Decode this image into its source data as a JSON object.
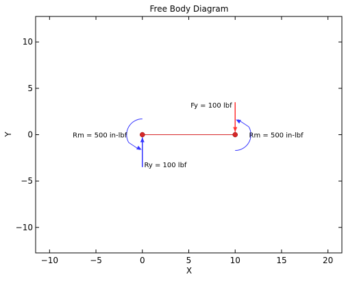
{
  "chart_data": {
    "type": "diagram",
    "title": "Free Body Diagram",
    "xlabel": "X",
    "ylabel": "Y",
    "xlim": [
      -11.5,
      21.5
    ],
    "ylim": [
      -12.75,
      12.75
    ],
    "xticks": [
      -10,
      -5,
      0,
      5,
      10,
      15,
      20
    ],
    "yticks": [
      -10,
      -5,
      0,
      5,
      10
    ],
    "xtick_labels": [
      "−10",
      "−5",
      "0",
      "5",
      "10",
      "15",
      "20"
    ],
    "ytick_labels": [
      "−10",
      "−5",
      "0",
      "5",
      "10"
    ],
    "beam": {
      "x1": 0,
      "y1": 0,
      "x2": 10,
      "y2": 0,
      "color": "#d62728"
    },
    "nodes": [
      {
        "x": 0,
        "y": 0
      },
      {
        "x": 10,
        "y": 0
      }
    ],
    "forces": [
      {
        "label": "Fy = 100 lbf",
        "x0": 10,
        "y0": 3.5,
        "x1": 10,
        "y1": 0,
        "color": "#ff3333",
        "label_x": 5.2,
        "label_y": 3.2
      },
      {
        "label": "Ry = 100 lbf",
        "x0": 0,
        "y0": -3.5,
        "x1": 0,
        "y1": 0,
        "color": "#3333ff",
        "label_x": 0.2,
        "label_y": -3.2
      }
    ],
    "moments": [
      {
        "label": "Rm = 500 in-lbf",
        "cx": 0,
        "cy": 0,
        "side": "left",
        "color": "#3333ff",
        "label_x": -7.5,
        "label_y": 0
      },
      {
        "label": "Rm = 500 in-lbf",
        "cx": 10,
        "cy": 0,
        "side": "right",
        "color": "#3333ff",
        "label_x": 11.5,
        "label_y": 0
      }
    ]
  }
}
